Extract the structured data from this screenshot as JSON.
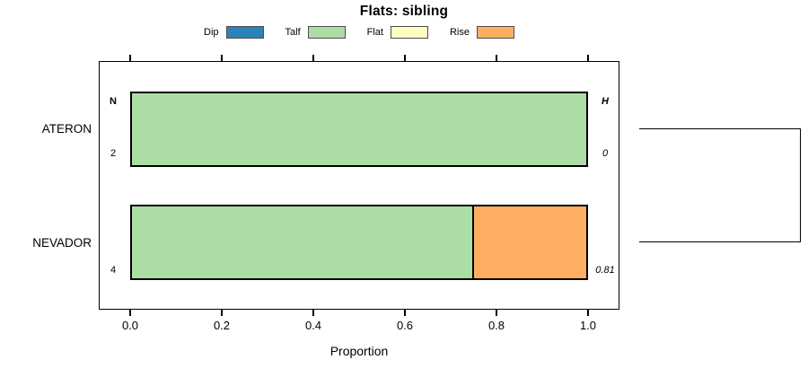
{
  "title": "Flats: sibling",
  "legend": {
    "items": [
      {
        "label": "Dip",
        "color": "#2b83ba"
      },
      {
        "label": "Talf",
        "color": "#abdda4"
      },
      {
        "label": "Flat",
        "color": "#ffffbf"
      },
      {
        "label": "Rise",
        "color": "#fdae61"
      }
    ]
  },
  "chart_data": {
    "type": "bar",
    "orientation": "horizontal",
    "stacked": true,
    "title": "Flats: sibling",
    "xlabel": "Proportion",
    "xlim": [
      0,
      1
    ],
    "xticks": [
      "0.0",
      "0.2",
      "0.4",
      "0.6",
      "0.8",
      "1.0"
    ],
    "grid": false,
    "legend_position": "top",
    "categories": [
      "ATERON",
      "NEVADOR"
    ],
    "series": [
      {
        "name": "Dip",
        "color": "#2b83ba",
        "values": [
          0,
          0
        ]
      },
      {
        "name": "Talf",
        "color": "#abdda4",
        "values": [
          1.0,
          0.75
        ]
      },
      {
        "name": "Flat",
        "color": "#ffffbf",
        "values": [
          0,
          0
        ]
      },
      {
        "name": "Rise",
        "color": "#fdae61",
        "values": [
          0,
          0.25
        ]
      }
    ],
    "annotations": {
      "left_header": "N",
      "right_header": "H",
      "rows": [
        {
          "n": "2",
          "h": "0"
        },
        {
          "n": "4",
          "h": "0.81"
        }
      ]
    }
  }
}
